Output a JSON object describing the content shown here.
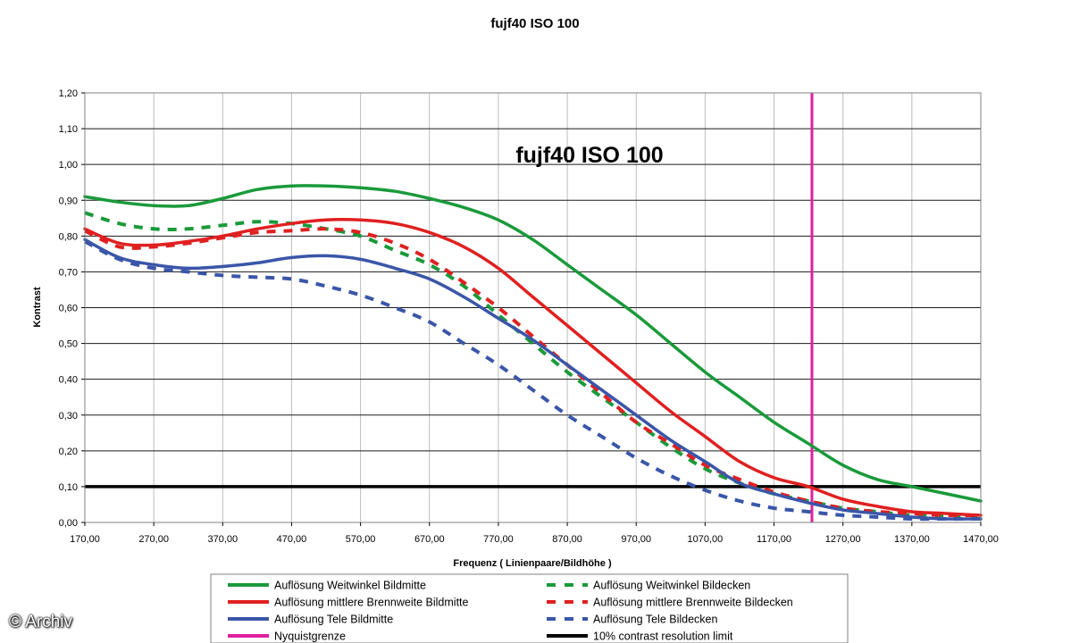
{
  "chart_data": {
    "type": "line",
    "title": "fujf40 ISO 100",
    "subtitle": "fujf40 ISO 100",
    "xlabel": "Frequenz ( Linienpaare/Bildhöhe )",
    "ylabel": "Kontrast",
    "xlim": [
      170,
      1470
    ],
    "ylim": [
      0,
      1.2
    ],
    "x_ticks": [
      "170,00",
      "270,00",
      "370,00",
      "470,00",
      "570,00",
      "670,00",
      "770,00",
      "870,00",
      "970,00",
      "1070,00",
      "1170,00",
      "1270,00",
      "1370,00",
      "1470,00"
    ],
    "y_ticks": [
      "0,00",
      "0,10",
      "0,20",
      "0,30",
      "0,40",
      "0,50",
      "0,60",
      "0,70",
      "0,80",
      "0,90",
      "1,00",
      "1,10",
      "1,20"
    ],
    "grid": true,
    "legend_position": "bottom",
    "series": [
      {
        "name": "Auflösung Weitwinkel Bildmitte",
        "color": "#1a9a3a",
        "dash": false,
        "x": [
          170,
          220,
          270,
          320,
          370,
          420,
          470,
          520,
          570,
          620,
          670,
          720,
          770,
          820,
          870,
          920,
          970,
          1020,
          1070,
          1120,
          1170,
          1220,
          1270,
          1320,
          1370,
          1420,
          1470
        ],
        "y": [
          0.91,
          0.895,
          0.885,
          0.885,
          0.905,
          0.93,
          0.94,
          0.94,
          0.935,
          0.925,
          0.905,
          0.88,
          0.845,
          0.79,
          0.72,
          0.65,
          0.58,
          0.5,
          0.42,
          0.35,
          0.28,
          0.22,
          0.16,
          0.12,
          0.1,
          0.08,
          0.06
        ]
      },
      {
        "name": "Auflösung Weitwinkel Bildecken",
        "color": "#1a9a3a",
        "dash": true,
        "x": [
          170,
          220,
          270,
          320,
          370,
          420,
          470,
          520,
          570,
          620,
          670,
          720,
          770,
          820,
          870,
          920,
          970,
          1020,
          1070,
          1120,
          1170,
          1220,
          1270,
          1320,
          1370,
          1420,
          1470
        ],
        "y": [
          0.865,
          0.835,
          0.82,
          0.82,
          0.83,
          0.84,
          0.835,
          0.82,
          0.8,
          0.76,
          0.72,
          0.66,
          0.58,
          0.5,
          0.42,
          0.35,
          0.28,
          0.21,
          0.15,
          0.11,
          0.08,
          0.06,
          0.04,
          0.03,
          0.02,
          0.02,
          0.02
        ]
      },
      {
        "name": "Auflösung mittlere Brennweite Bildmitte",
        "color": "#e02020",
        "dash": false,
        "x": [
          170,
          220,
          270,
          320,
          370,
          420,
          470,
          520,
          570,
          620,
          670,
          720,
          770,
          820,
          870,
          920,
          970,
          1020,
          1070,
          1120,
          1170,
          1220,
          1270,
          1320,
          1370,
          1420,
          1470
        ],
        "y": [
          0.82,
          0.78,
          0.775,
          0.785,
          0.8,
          0.82,
          0.835,
          0.845,
          0.845,
          0.835,
          0.81,
          0.77,
          0.71,
          0.63,
          0.55,
          0.47,
          0.39,
          0.31,
          0.24,
          0.17,
          0.125,
          0.1,
          0.065,
          0.045,
          0.03,
          0.025,
          0.02
        ]
      },
      {
        "name": "Auflösung mittlere Brennweite Bildecken",
        "color": "#e02020",
        "dash": true,
        "x": [
          170,
          220,
          270,
          320,
          370,
          420,
          470,
          520,
          570,
          620,
          670,
          720,
          770,
          820,
          870,
          920,
          970,
          1020,
          1070,
          1120,
          1170,
          1220,
          1270,
          1320,
          1370,
          1420,
          1470
        ],
        "y": [
          0.815,
          0.77,
          0.77,
          0.78,
          0.795,
          0.81,
          0.815,
          0.82,
          0.81,
          0.78,
          0.735,
          0.67,
          0.6,
          0.52,
          0.44,
          0.36,
          0.28,
          0.22,
          0.16,
          0.12,
          0.085,
          0.06,
          0.04,
          0.03,
          0.025,
          0.02,
          0.02
        ]
      },
      {
        "name": "Auflösung Tele Bildmitte",
        "color": "#3a56a8",
        "dash": false,
        "x": [
          170,
          220,
          270,
          320,
          370,
          420,
          470,
          520,
          570,
          620,
          670,
          720,
          770,
          820,
          870,
          920,
          970,
          1020,
          1070,
          1120,
          1170,
          1220,
          1270,
          1320,
          1370,
          1420,
          1470
        ],
        "y": [
          0.79,
          0.74,
          0.72,
          0.71,
          0.715,
          0.725,
          0.74,
          0.745,
          0.735,
          0.71,
          0.68,
          0.63,
          0.57,
          0.51,
          0.44,
          0.37,
          0.3,
          0.23,
          0.17,
          0.11,
          0.08,
          0.055,
          0.035,
          0.025,
          0.015,
          0.01,
          0.01
        ]
      },
      {
        "name": "Auflösung Tele Bildecken",
        "color": "#3a56a8",
        "dash": true,
        "x": [
          170,
          220,
          270,
          320,
          370,
          420,
          470,
          520,
          570,
          620,
          670,
          720,
          770,
          820,
          870,
          920,
          970,
          1020,
          1070,
          1120,
          1170,
          1220,
          1270,
          1320,
          1370,
          1420,
          1470
        ],
        "y": [
          0.785,
          0.735,
          0.71,
          0.7,
          0.69,
          0.685,
          0.68,
          0.66,
          0.635,
          0.6,
          0.56,
          0.5,
          0.44,
          0.37,
          0.3,
          0.24,
          0.18,
          0.13,
          0.09,
          0.06,
          0.04,
          0.03,
          0.02,
          0.015,
          0.01,
          0.01,
          0.01
        ]
      }
    ],
    "reference_lines": [
      {
        "name": "Nyquistgrenze",
        "color": "#e020a0",
        "orientation": "vertical",
        "x": 1225
      },
      {
        "name": "10% contrast resolution limit",
        "color": "#000000",
        "orientation": "horizontal",
        "y": 0.1
      }
    ]
  },
  "legend": {
    "left": [
      {
        "label": "Auflösung Weitwinkel Bildmitte",
        "color": "#1a9a3a",
        "dash": false
      },
      {
        "label": "Auflösung mittlere Brennweite Bildmitte",
        "color": "#e02020",
        "dash": false
      },
      {
        "label": "Auflösung Tele Bildmitte",
        "color": "#3a56a8",
        "dash": false
      },
      {
        "label": "Nyquistgrenze",
        "color": "#e020a0",
        "dash": false
      }
    ],
    "right": [
      {
        "label": "Auflösung Weitwinkel Bildecken",
        "color": "#1a9a3a",
        "dash": true
      },
      {
        "label": "Auflösung mittlere Brennweite Bildecken",
        "color": "#e02020",
        "dash": true
      },
      {
        "label": "Auflösung Tele Bildecken",
        "color": "#3a56a8",
        "dash": true
      },
      {
        "label": "10% contrast resolution limit",
        "color": "#000000",
        "dash": false
      }
    ]
  },
  "watermark": "© Archiv"
}
